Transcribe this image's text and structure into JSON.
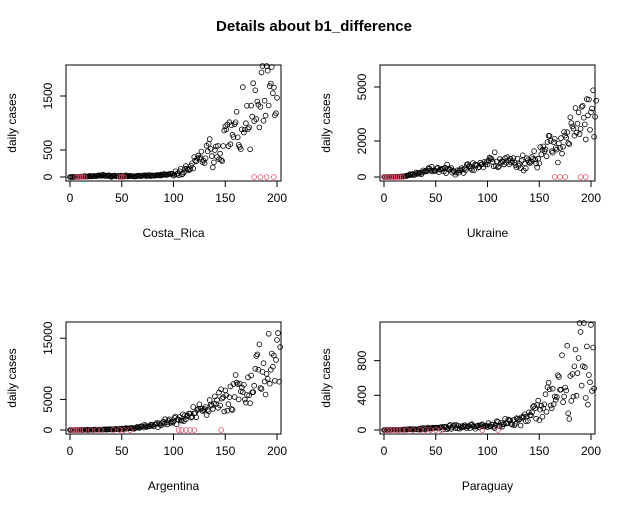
{
  "figure": {
    "title": "Details about b1_difference"
  },
  "chart_data": [
    {
      "type": "scatter",
      "xlabel": "Costa_Rica",
      "ylabel": "daily cases",
      "xlim": [
        0,
        200
      ],
      "ylim": [
        0,
        2000
      ],
      "xticks": [
        0,
        50,
        100,
        150,
        200
      ],
      "yticks": [
        0,
        500,
        1500
      ],
      "anchors": [
        [
          0,
          0
        ],
        [
          10,
          5
        ],
        [
          20,
          20
        ],
        [
          30,
          28
        ],
        [
          40,
          20
        ],
        [
          50,
          18
        ],
        [
          60,
          20
        ],
        [
          70,
          22
        ],
        [
          80,
          25
        ],
        [
          90,
          35
        ],
        [
          100,
          50
        ],
        [
          110,
          110
        ],
        [
          120,
          230
        ],
        [
          130,
          380
        ],
        [
          140,
          520
        ],
        [
          150,
          700
        ],
        [
          160,
          800
        ],
        [
          170,
          900
        ],
        [
          180,
          1150
        ],
        [
          190,
          1350
        ],
        [
          200,
          1550
        ]
      ],
      "series": [
        {
          "color": "#000000",
          "x_start": 0,
          "x_end": 200,
          "step": 1,
          "spread": 0.32,
          "seed": 11
        },
        {
          "color": "#DF536B",
          "x": [
            6,
            8,
            10,
            12,
            14,
            48,
            50,
            52,
            178,
            184,
            190,
            197
          ],
          "y": [
            0,
            0,
            0,
            0,
            0,
            0,
            0,
            0,
            0,
            0,
            0,
            0
          ]
        }
      ]
    },
    {
      "type": "scatter",
      "xlabel": "Ukraine",
      "ylabel": "daily cases",
      "xlim": [
        0,
        200
      ],
      "ylim": [
        0,
        6000
      ],
      "xticks": [
        0,
        50,
        100,
        150,
        200
      ],
      "yticks": [
        0,
        2000,
        5000
      ],
      "anchors": [
        [
          0,
          0
        ],
        [
          15,
          20
        ],
        [
          25,
          100
        ],
        [
          40,
          300
        ],
        [
          50,
          450
        ],
        [
          60,
          400
        ],
        [
          70,
          400
        ],
        [
          80,
          500
        ],
        [
          90,
          650
        ],
        [
          100,
          800
        ],
        [
          110,
          950
        ],
        [
          120,
          850
        ],
        [
          130,
          800
        ],
        [
          140,
          900
        ],
        [
          150,
          1200
        ],
        [
          160,
          1600
        ],
        [
          170,
          2000
        ],
        [
          180,
          2400
        ],
        [
          190,
          2900
        ],
        [
          200,
          3300
        ]
      ],
      "series": [
        {
          "color": "#000000",
          "x_start": 0,
          "x_end": 205,
          "step": 1,
          "spread": 0.26,
          "seed": 23
        },
        {
          "color": "#DF536B",
          "x": [
            0,
            2,
            4,
            6,
            8,
            10,
            12,
            14,
            16,
            18,
            165,
            170,
            175,
            190,
            195
          ],
          "y": [
            0,
            0,
            0,
            0,
            0,
            0,
            0,
            0,
            0,
            0,
            0,
            0,
            0,
            0,
            0
          ]
        }
      ]
    },
    {
      "type": "scatter",
      "xlabel": "Argentina",
      "ylabel": "daily cases",
      "xlim": [
        0,
        200
      ],
      "ylim": [
        0,
        17000
      ],
      "xticks": [
        0,
        50,
        100,
        150,
        200
      ],
      "yticks": [
        0,
        5000,
        15000
      ],
      "anchors": [
        [
          0,
          0
        ],
        [
          20,
          30
        ],
        [
          40,
          100
        ],
        [
          60,
          300
        ],
        [
          70,
          500
        ],
        [
          80,
          800
        ],
        [
          90,
          1100
        ],
        [
          100,
          1500
        ],
        [
          110,
          2000
        ],
        [
          120,
          2600
        ],
        [
          130,
          3200
        ],
        [
          140,
          4000
        ],
        [
          150,
          5200
        ],
        [
          160,
          6500
        ],
        [
          170,
          7500
        ],
        [
          180,
          9000
        ],
        [
          190,
          10500
        ],
        [
          200,
          12000
        ]
      ],
      "series": [
        {
          "color": "#000000",
          "x_start": 0,
          "x_end": 203,
          "step": 1,
          "spread": 0.24,
          "seed": 37
        },
        {
          "color": "#DF536B",
          "x": [
            2,
            4,
            6,
            8,
            10,
            14,
            20,
            26,
            30,
            42,
            48,
            52,
            58,
            105,
            108,
            112,
            116,
            120,
            146
          ],
          "y": [
            0,
            0,
            0,
            0,
            0,
            0,
            0,
            0,
            0,
            0,
            0,
            0,
            0,
            0,
            0,
            0,
            0,
            0,
            0
          ]
        }
      ]
    },
    {
      "type": "scatter",
      "xlabel": "Paraguay",
      "ylabel": "daily cases",
      "xlim": [
        0,
        200
      ],
      "ylim": [
        0,
        1200
      ],
      "xticks": [
        0,
        50,
        100,
        150,
        200
      ],
      "yticks": [
        0,
        400,
        800
      ],
      "anchors": [
        [
          0,
          0
        ],
        [
          20,
          5
        ],
        [
          40,
          15
        ],
        [
          60,
          30
        ],
        [
          80,
          40
        ],
        [
          100,
          50
        ],
        [
          110,
          70
        ],
        [
          120,
          80
        ],
        [
          130,
          100
        ],
        [
          140,
          140
        ],
        [
          150,
          250
        ],
        [
          160,
          380
        ],
        [
          170,
          550
        ],
        [
          180,
          700
        ],
        [
          190,
          800
        ],
        [
          200,
          780
        ]
      ],
      "series": [
        {
          "color": "#000000",
          "x_start": 0,
          "x_end": 203,
          "step": 1,
          "spread": 0.34,
          "seed": 53
        },
        {
          "color": "#DF536B",
          "x": [
            2,
            5,
            8,
            11,
            14,
            17,
            22,
            28,
            35,
            40,
            45,
            50,
            55,
            95,
            110
          ],
          "y": [
            0,
            0,
            0,
            0,
            0,
            0,
            0,
            0,
            0,
            0,
            0,
            0,
            0,
            0,
            0
          ]
        }
      ]
    }
  ]
}
